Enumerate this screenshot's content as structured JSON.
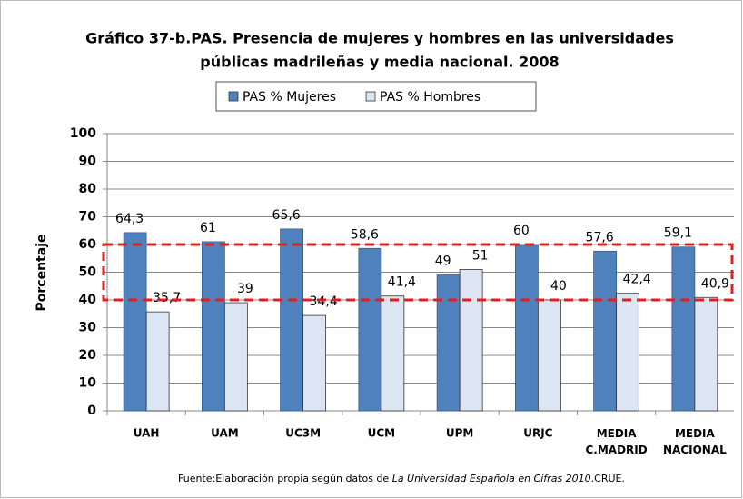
{
  "chart_data": {
    "type": "bar",
    "title": [
      "Gráfico 37-b.PAS. Presencia de mujeres y hombres en las  universidades",
      "públicas madrileñas y media nacional. 2008"
    ],
    "y_label": "Porcentaje",
    "categories": [
      "UAH",
      "UAM",
      "UC3M",
      "UCM",
      "UPM",
      "URJC",
      "MEDIA C.MADRID",
      "MEDIA NACIONAL"
    ],
    "series": [
      {
        "name": "PAS % Mujeres",
        "color": "#4f81bd",
        "values": [
          64.3,
          61,
          65.6,
          58.6,
          49,
          60,
          57.6,
          59.1
        ],
        "value_labels": [
          "64,3",
          "61",
          "65,6",
          "58,6",
          "49",
          "60",
          "57,6",
          "59,1"
        ]
      },
      {
        "name": "PAS % Hombres",
        "color": "#dce6f2",
        "values": [
          35.7,
          39,
          34.4,
          41.4,
          51,
          40,
          42.4,
          40.9
        ],
        "value_labels": [
          "35,7",
          "39",
          "34,4",
          "41,4",
          "51",
          "40",
          "42,4",
          "40,9"
        ]
      }
    ],
    "ylim": [
      0,
      100
    ],
    "yticks": [
      0,
      10,
      20,
      30,
      40,
      50,
      60,
      70,
      80,
      90,
      100
    ],
    "grid": true,
    "legend": "top",
    "highlight_range": [
      40,
      60
    ],
    "source": [
      "Fuente:Elaboración propia según datos de ",
      "La Universidad Española en Cifras 2010",
      ".CRUE."
    ]
  }
}
